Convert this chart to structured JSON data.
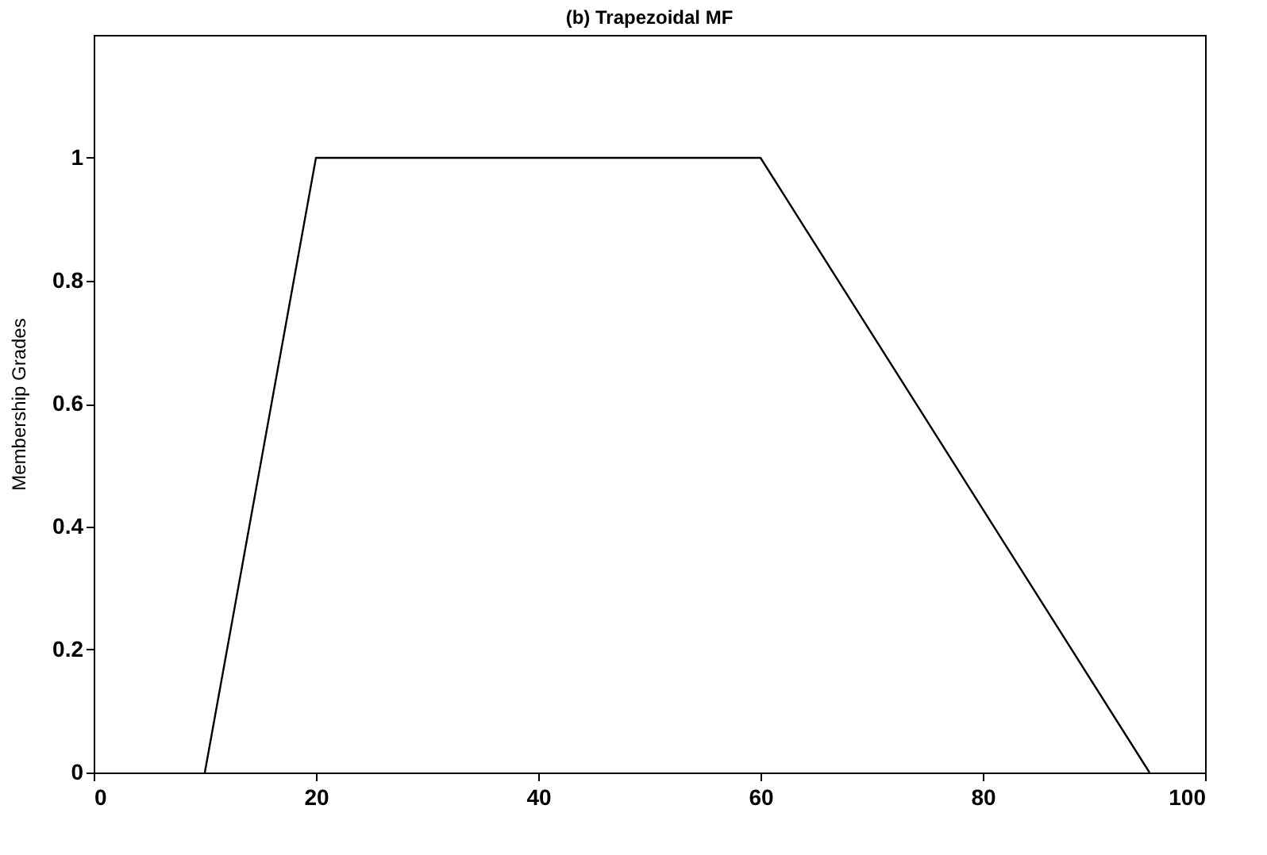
{
  "chart_data": {
    "type": "line",
    "title": "(b) Trapezoidal MF",
    "ylabel": "Membership Grades",
    "x": [
      10,
      20,
      60,
      95
    ],
    "series": [
      {
        "color": "#000000",
        "values": [
          0,
          1,
          1,
          0
        ]
      }
    ],
    "xlim": [
      0,
      100
    ],
    "xticks": [
      0,
      20,
      40,
      60,
      80,
      100
    ],
    "ylim": [
      0,
      1.2
    ],
    "yticks": [
      0,
      0.2,
      0.4,
      0.6,
      0.8,
      1
    ],
    "grid": false
  }
}
